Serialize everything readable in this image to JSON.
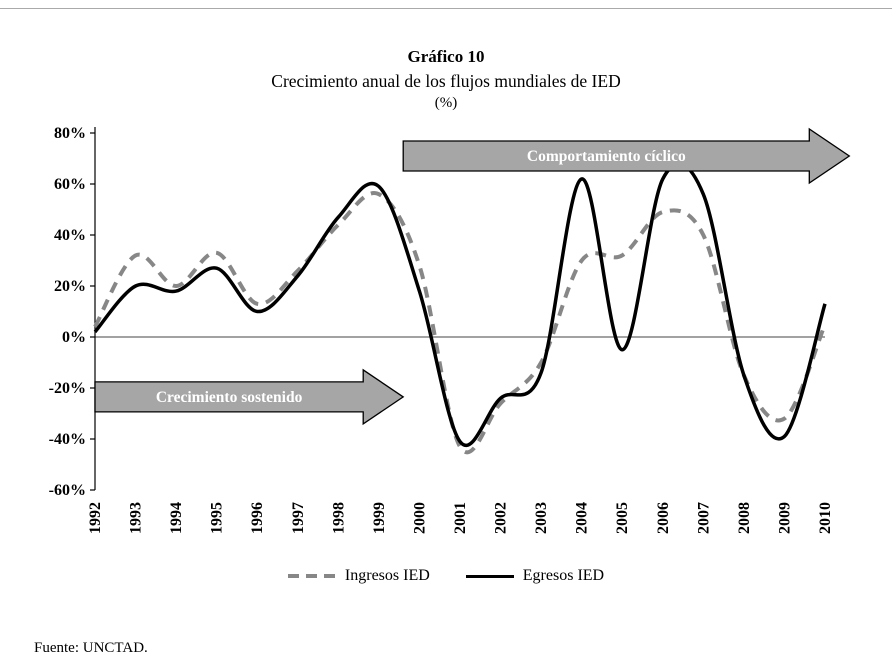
{
  "header": {
    "title": "Gráfico 10",
    "subtitle": "Crecimiento anual de los flujos mundiales de IED",
    "unit": "(%)"
  },
  "footer": {
    "source": "Fuente: UNCTAD."
  },
  "chart_data": {
    "type": "line",
    "x": [
      1992,
      1993,
      1994,
      1995,
      1996,
      1997,
      1998,
      1999,
      2000,
      2001,
      2002,
      2003,
      2004,
      2005,
      2006,
      2007,
      2008,
      2009,
      2010
    ],
    "series": [
      {
        "name": "Ingresos IED",
        "style": "dashed",
        "color": "#878787",
        "values": [
          4,
          32,
          20,
          33,
          13,
          26,
          44,
          56,
          28,
          -43,
          -26,
          -10,
          30,
          32,
          49,
          40,
          -15,
          -32,
          5
        ]
      },
      {
        "name": "Egresos IED",
        "style": "solid",
        "color": "#000000",
        "values": [
          2,
          20,
          18,
          27,
          10,
          24,
          47,
          59,
          18,
          -41,
          -24,
          -14,
          62,
          -5,
          62,
          56,
          -15,
          -39,
          13
        ]
      }
    ],
    "title": "Crecimiento anual de los flujos mundiales de IED (%)",
    "xlabel": "",
    "ylabel": "",
    "ylim": [
      -60,
      80
    ],
    "yticks": [
      80,
      60,
      40,
      20,
      0,
      -20,
      -40,
      -60
    ],
    "ytick_format": "percent",
    "grid": false,
    "legend_position": "bottom",
    "annotations": [
      {
        "label": "Crecimiento sostenido",
        "from_year": 1992,
        "to_year": 1999.6,
        "y_percent": -23.5,
        "fill": "#a6a6a6",
        "text_color": "#ffffff"
      },
      {
        "label": "Comportamiento cíclico",
        "from_year": 1999.6,
        "to_year": 2010.6,
        "y_percent": 71,
        "fill": "#a6a6a6",
        "text_color": "#ffffff"
      }
    ]
  }
}
